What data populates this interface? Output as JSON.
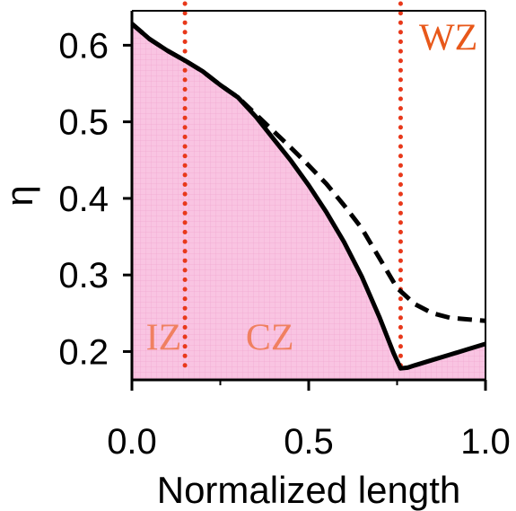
{
  "chart_data": {
    "type": "line",
    "title": "",
    "xlabel": "Normalized length",
    "ylabel": "η",
    "xlim": [
      0.0,
      1.0
    ],
    "ylim": [
      0.163,
      0.645
    ],
    "xticks": [
      0.0,
      0.5,
      1.0
    ],
    "xtick_labels": [
      "0.0",
      "0.5",
      "1.0"
    ],
    "yticks": [
      0.2,
      0.3,
      0.4,
      0.5,
      0.6
    ],
    "ytick_labels": [
      "0.2",
      "0.3",
      "0.4",
      "0.5",
      "0.6"
    ],
    "grid": false,
    "series": [
      {
        "style": "solid",
        "color": "#000000",
        "x": [
          0.0,
          0.05,
          0.1,
          0.15,
          0.2,
          0.25,
          0.3,
          0.35,
          0.4,
          0.45,
          0.5,
          0.55,
          0.6,
          0.65,
          0.7,
          0.74,
          0.76,
          0.78,
          0.8,
          0.85,
          0.9,
          0.95,
          1.0
        ],
        "y": [
          0.628,
          0.608,
          0.593,
          0.58,
          0.566,
          0.548,
          0.532,
          0.507,
          0.478,
          0.449,
          0.417,
          0.382,
          0.343,
          0.298,
          0.245,
          0.198,
          0.178,
          0.179,
          0.182,
          0.189,
          0.196,
          0.203,
          0.21
        ]
      },
      {
        "style": "dashed",
        "color": "#000000",
        "x": [
          0.0,
          0.05,
          0.1,
          0.15,
          0.2,
          0.25,
          0.3,
          0.35,
          0.4,
          0.45,
          0.5,
          0.55,
          0.6,
          0.65,
          0.7,
          0.75,
          0.8,
          0.85,
          0.9,
          0.95,
          1.0
        ],
        "y": [
          0.628,
          0.608,
          0.593,
          0.58,
          0.566,
          0.548,
          0.532,
          0.51,
          0.488,
          0.466,
          0.443,
          0.419,
          0.391,
          0.361,
          0.322,
          0.283,
          0.262,
          0.25,
          0.244,
          0.242,
          0.24
        ]
      }
    ],
    "shaded_region": {
      "color": "#f9c4e2",
      "x": [
        0.0,
        0.05,
        0.1,
        0.15,
        0.2,
        0.25,
        0.3,
        0.35,
        0.4,
        0.45,
        0.5,
        0.55,
        0.6,
        0.65,
        0.7,
        0.74,
        0.76,
        0.78,
        0.8,
        0.85,
        0.9,
        0.95,
        1.0
      ],
      "y": [
        0.628,
        0.608,
        0.593,
        0.58,
        0.566,
        0.548,
        0.532,
        0.507,
        0.478,
        0.449,
        0.417,
        0.382,
        0.343,
        0.298,
        0.245,
        0.198,
        0.178,
        0.179,
        0.182,
        0.189,
        0.196,
        0.203,
        0.21
      ]
    },
    "vertical_lines": [
      {
        "x": 0.15,
        "color": "#e8381a",
        "style": "dotted"
      },
      {
        "x": 0.76,
        "color": "#e8381a",
        "style": "dotted"
      }
    ],
    "annotations": [
      {
        "text": "IZ",
        "x": 0.09,
        "y": 0.202,
        "color": "#f08060"
      },
      {
        "text": "CZ",
        "x": 0.39,
        "y": 0.202,
        "color": "#f08060"
      },
      {
        "text": "WZ",
        "x": 0.895,
        "y": 0.594,
        "color": "#e8581a"
      }
    ]
  }
}
